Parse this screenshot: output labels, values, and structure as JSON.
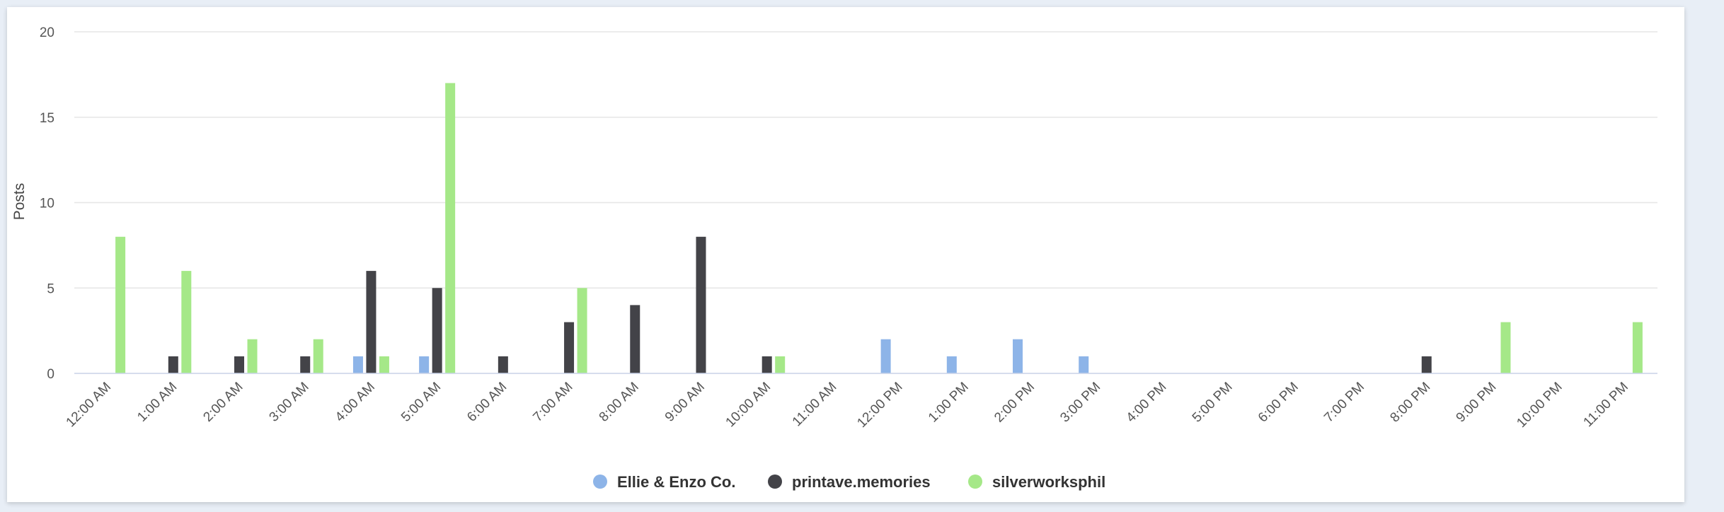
{
  "chart_data": {
    "type": "bar",
    "ylabel": "Posts",
    "ylim": [
      0,
      20
    ],
    "yticks": [
      0,
      5,
      10,
      15,
      20
    ],
    "grid": true,
    "legend_position": "bottom-center",
    "categories": [
      "12:00 AM",
      "1:00 AM",
      "2:00 AM",
      "3:00 AM",
      "4:00 AM",
      "5:00 AM",
      "6:00 AM",
      "7:00 AM",
      "8:00 AM",
      "9:00 AM",
      "10:00 AM",
      "11:00 AM",
      "12:00 PM",
      "1:00 PM",
      "2:00 PM",
      "3:00 PM",
      "4:00 PM",
      "5:00 PM",
      "6:00 PM",
      "7:00 PM",
      "8:00 PM",
      "9:00 PM",
      "10:00 PM",
      "11:00 PM"
    ],
    "series": [
      {
        "name": "Ellie & Enzo Co.",
        "color": "#8db4e8",
        "values": [
          0,
          0,
          0,
          0,
          1,
          1,
          0,
          0,
          0,
          0,
          0,
          0,
          2,
          1,
          2,
          1,
          0,
          0,
          0,
          0,
          0,
          0,
          0,
          0
        ]
      },
      {
        "name": "printave.memories",
        "color": "#434348",
        "values": [
          0,
          1,
          1,
          1,
          6,
          5,
          1,
          3,
          4,
          8,
          1,
          0,
          0,
          0,
          0,
          0,
          0,
          0,
          0,
          0,
          1,
          0,
          0,
          0
        ]
      },
      {
        "name": "silverworksphil",
        "color": "#a5e888",
        "values": [
          8,
          6,
          2,
          2,
          1,
          17,
          0,
          5,
          0,
          0,
          1,
          0,
          0,
          0,
          0,
          0,
          0,
          0,
          0,
          0,
          0,
          3,
          0,
          3
        ]
      }
    ]
  }
}
